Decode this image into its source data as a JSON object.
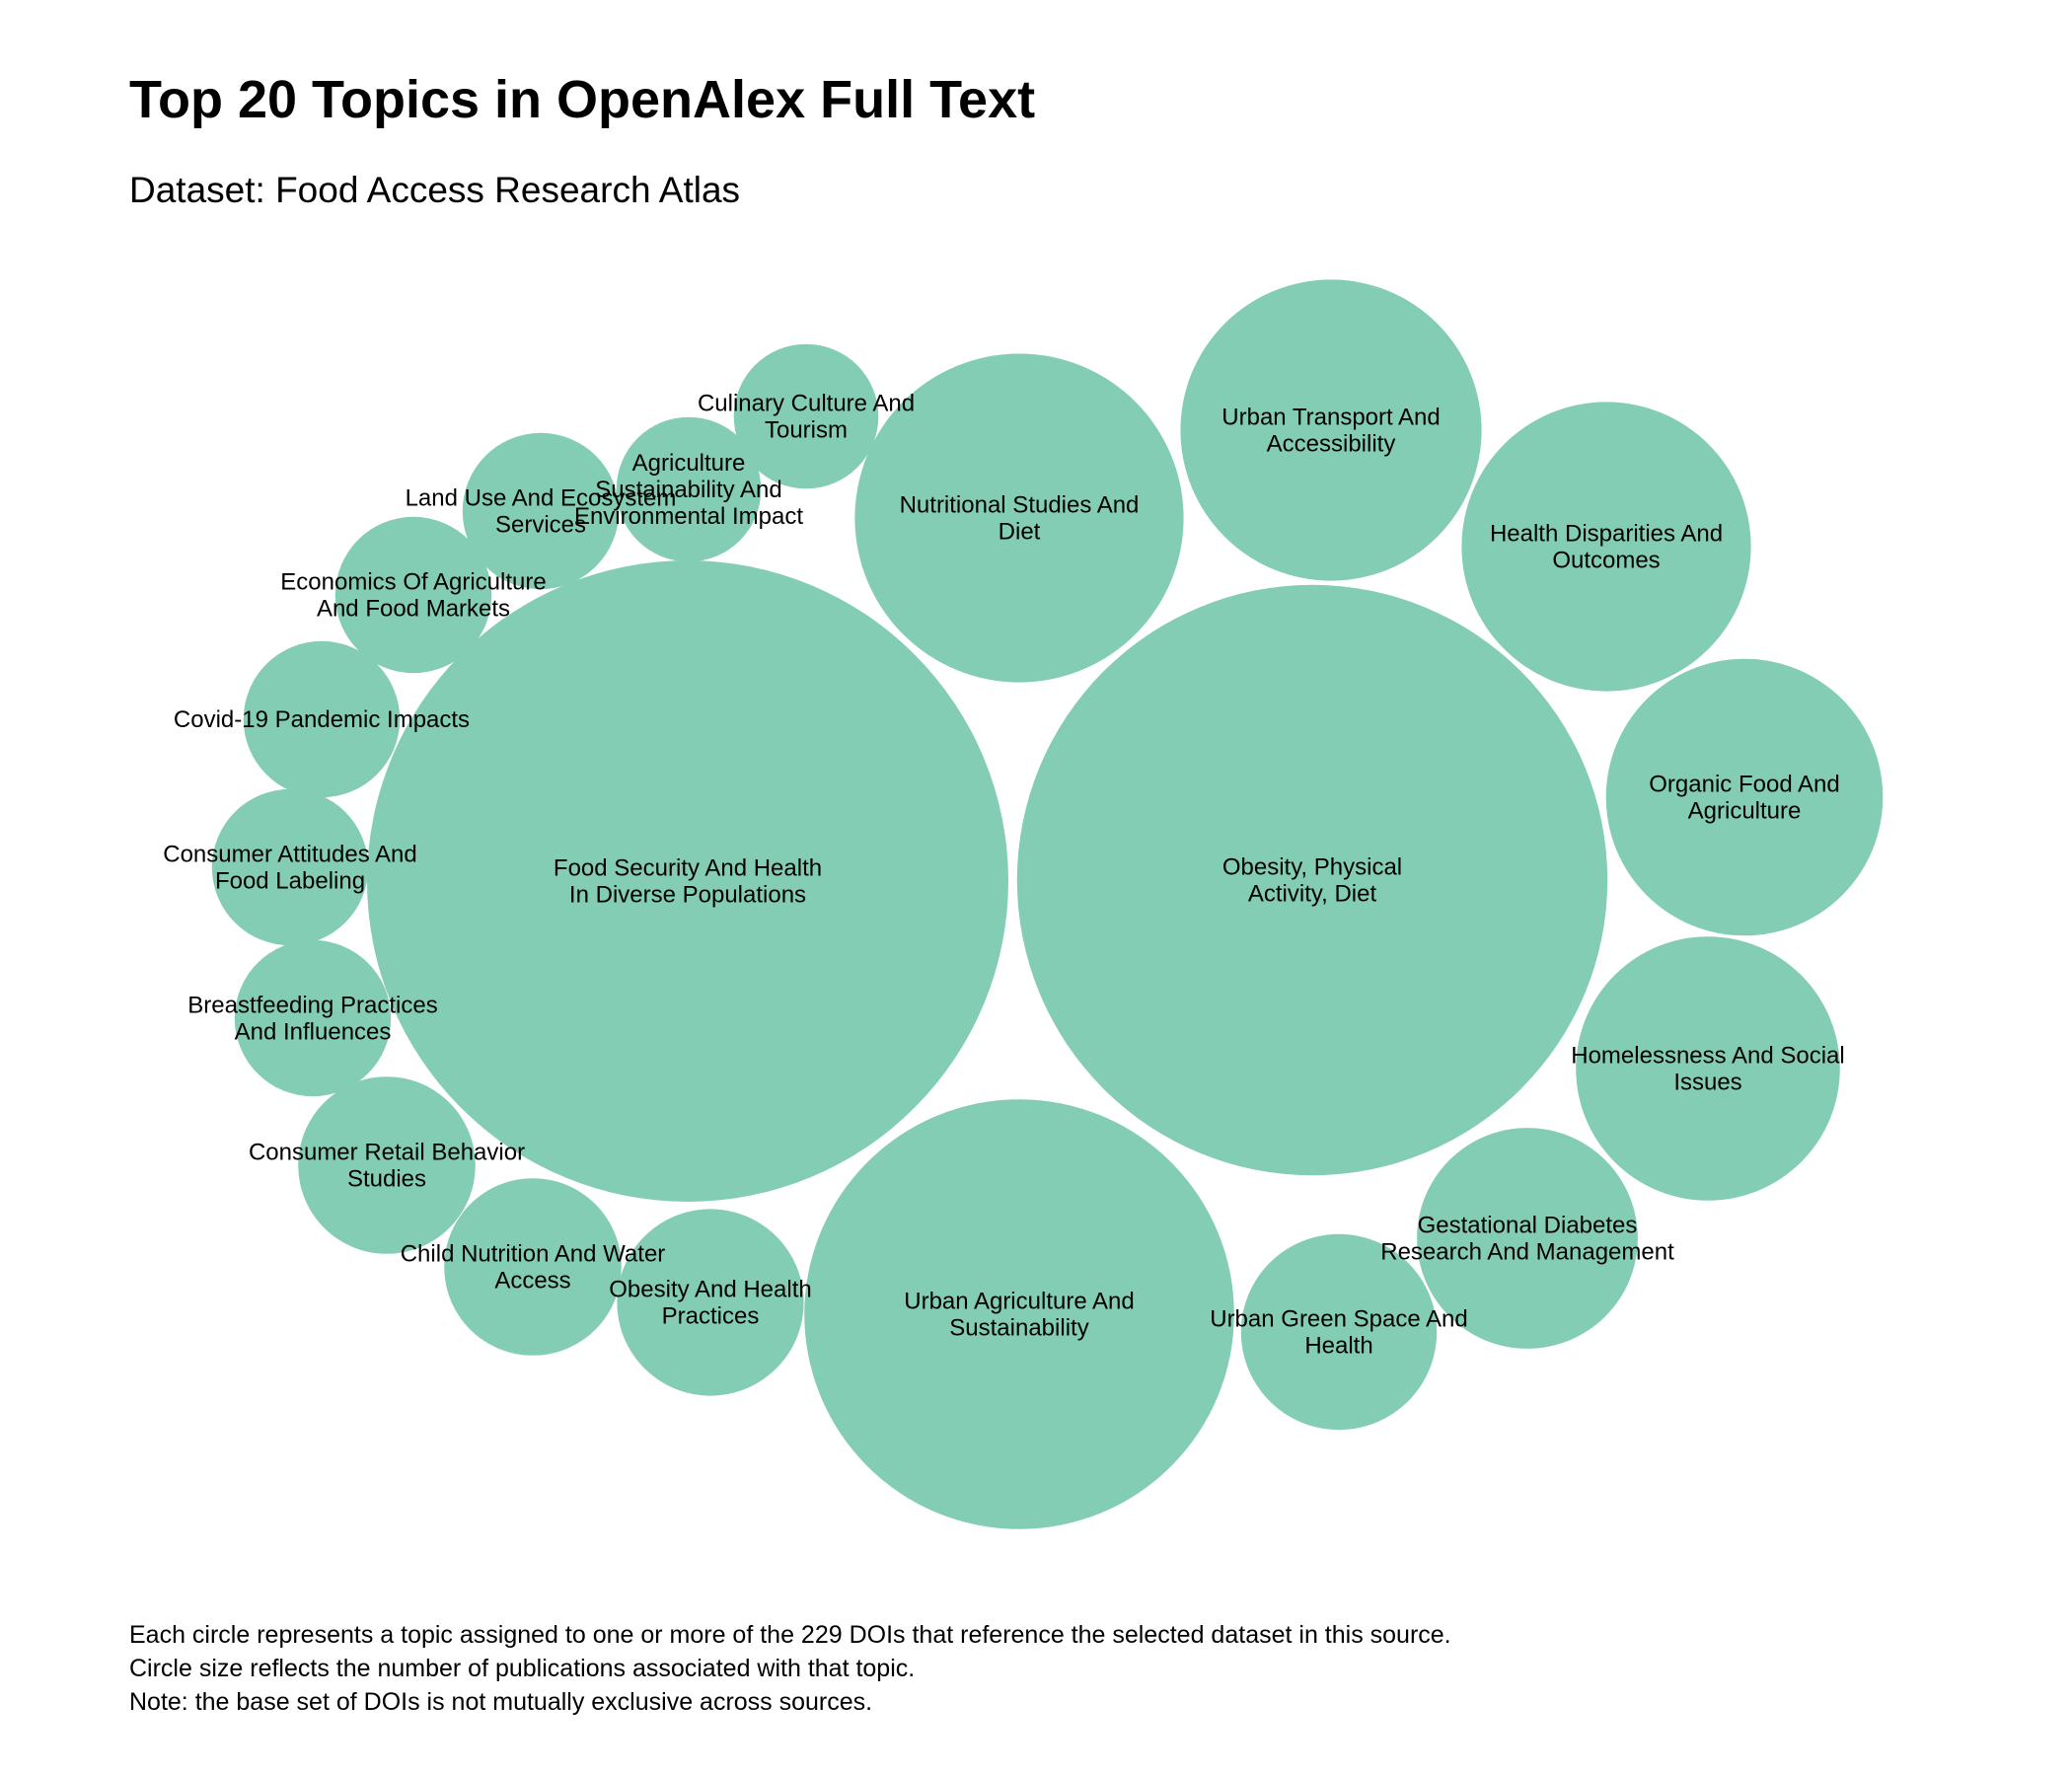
{
  "chart_data": {
    "type": "bubble",
    "title": "Top 20 Topics in OpenAlex Full Text",
    "subtitle": "Dataset: Food Access Research Atlas",
    "color": "#84cdb5",
    "notes": [
      "Each circle represents a topic assigned to one or more of the 229 DOIs that reference the selected dataset in this source.",
      "Circle size reflects the number of publications associated with that topic.",
      "Note: the base set of DOIs is not mutually exclusive across sources."
    ],
    "topics": [
      {
        "name": "Obesity, Physical Activity, Diet",
        "lines": [
          "Obesity, Physical",
          "Activity, Diet"
        ],
        "value": 100
      },
      {
        "name": "Food Security And Health In Diverse Populations",
        "lines": [
          "Food Security And Health",
          "In Diverse Populations"
        ],
        "value": 118
      },
      {
        "name": "Urban Agriculture And Sustainability",
        "lines": [
          "Urban Agriculture And",
          "Sustainability"
        ],
        "value": 53
      },
      {
        "name": "Nutritional Studies And Diet",
        "lines": [
          "Nutritional Studies And",
          "Diet"
        ],
        "value": 31
      },
      {
        "name": "Urban Transport And Accessibility",
        "lines": [
          "Urban Transport And",
          "Accessibility"
        ],
        "value": 26
      },
      {
        "name": "Health Disparities And Outcomes",
        "lines": [
          "Health Disparities And",
          "Outcomes"
        ],
        "value": 24
      },
      {
        "name": "Organic Food And Agriculture",
        "lines": [
          "Organic Food And",
          "Agriculture"
        ],
        "value": 22
      },
      {
        "name": "Homelessness And Social Issues",
        "lines": [
          "Homelessness And Social",
          "Issues"
        ],
        "value": 20
      },
      {
        "name": "Gestational Diabetes Research And Management",
        "lines": [
          "Gestational Diabetes",
          "Research And Management"
        ],
        "value": 14
      },
      {
        "name": "Urban Green Space And Health",
        "lines": [
          "Urban Green Space And",
          "Health"
        ],
        "value": 11
      },
      {
        "name": "Obesity And Health Practices",
        "lines": [
          "Obesity And Health",
          "Practices"
        ],
        "value": 10
      },
      {
        "name": "Child Nutrition And Water Access",
        "lines": [
          "Child Nutrition And Water",
          "Access"
        ],
        "value": 9
      },
      {
        "name": "Consumer Retail Behavior Studies",
        "lines": [
          "Consumer Retail Behavior",
          "Studies"
        ],
        "value": 9
      },
      {
        "name": "Breastfeeding Practices And Influences",
        "lines": [
          "Breastfeeding Practices",
          "And Influences"
        ],
        "value": 7
      },
      {
        "name": "Consumer Attitudes And Food Labeling",
        "lines": [
          "Consumer Attitudes And",
          "Food Labeling"
        ],
        "value": 7
      },
      {
        "name": "Covid-19 Pandemic Impacts",
        "lines": [
          "Covid-19 Pandemic Impacts"
        ],
        "value": 7
      },
      {
        "name": "Economics Of Agriculture And Food Markets",
        "lines": [
          "Economics Of Agriculture",
          "And Food Markets"
        ],
        "value": 7
      },
      {
        "name": "Land Use And Ecosystem Services",
        "lines": [
          "Land Use And Ecosystem",
          "Services"
        ],
        "value": 7
      },
      {
        "name": "Agriculture Sustainability And Environmental Impact",
        "lines": [
          "Agriculture",
          "Sustainability And",
          "Environmental Impact"
        ],
        "value": 6
      },
      {
        "name": "Culinary Culture And Tourism",
        "lines": [
          "Culinary Culture And",
          "Tourism"
        ],
        "value": 6
      }
    ]
  }
}
